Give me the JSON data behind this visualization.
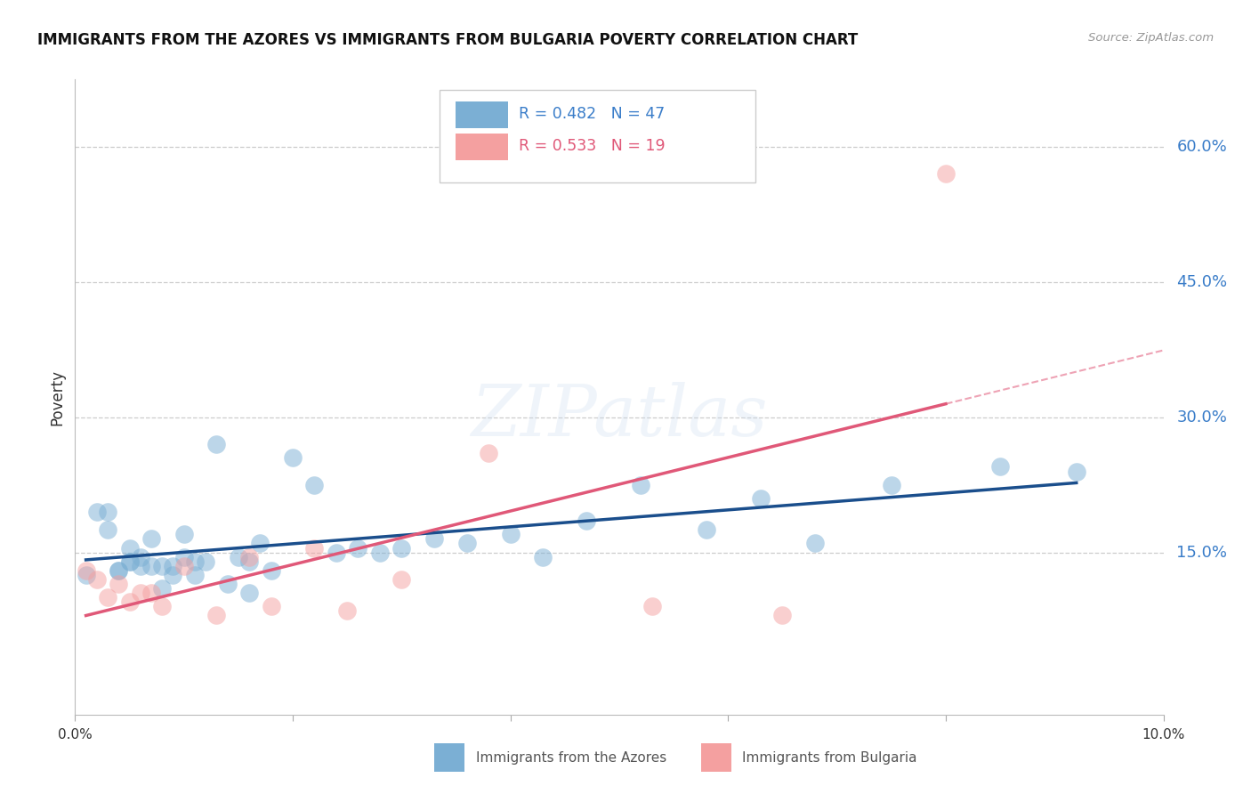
{
  "title": "IMMIGRANTS FROM THE AZORES VS IMMIGRANTS FROM BULGARIA POVERTY CORRELATION CHART",
  "source": "Source: ZipAtlas.com",
  "ylabel": "Poverty",
  "ytick_labels": [
    "60.0%",
    "45.0%",
    "30.0%",
    "15.0%"
  ],
  "ytick_values": [
    0.6,
    0.45,
    0.3,
    0.15
  ],
  "xlim": [
    0.0,
    0.1
  ],
  "ylim": [
    -0.03,
    0.675
  ],
  "legend_blue_r": "0.482",
  "legend_blue_n": "47",
  "legend_pink_r": "0.533",
  "legend_pink_n": "19",
  "blue_color": "#7BAFD4",
  "pink_color": "#F4A0A0",
  "line_blue_color": "#1A4E8C",
  "line_pink_color": "#E05878",
  "watermark_text": "ZIPatlas",
  "azores_x": [
    0.001,
    0.002,
    0.003,
    0.003,
    0.004,
    0.004,
    0.005,
    0.005,
    0.005,
    0.006,
    0.006,
    0.007,
    0.007,
    0.008,
    0.008,
    0.009,
    0.009,
    0.01,
    0.01,
    0.011,
    0.011,
    0.012,
    0.013,
    0.014,
    0.015,
    0.016,
    0.016,
    0.017,
    0.018,
    0.02,
    0.022,
    0.024,
    0.026,
    0.028,
    0.03,
    0.033,
    0.036,
    0.04,
    0.043,
    0.047,
    0.052,
    0.058,
    0.063,
    0.068,
    0.075,
    0.085,
    0.092
  ],
  "azores_y": [
    0.125,
    0.195,
    0.195,
    0.175,
    0.13,
    0.13,
    0.14,
    0.14,
    0.155,
    0.135,
    0.145,
    0.135,
    0.165,
    0.135,
    0.11,
    0.125,
    0.135,
    0.17,
    0.145,
    0.14,
    0.125,
    0.14,
    0.27,
    0.115,
    0.145,
    0.105,
    0.14,
    0.16,
    0.13,
    0.255,
    0.225,
    0.15,
    0.155,
    0.15,
    0.155,
    0.165,
    0.16,
    0.17,
    0.145,
    0.185,
    0.225,
    0.175,
    0.21,
    0.16,
    0.225,
    0.245,
    0.24
  ],
  "bulgaria_x": [
    0.001,
    0.002,
    0.003,
    0.004,
    0.005,
    0.006,
    0.007,
    0.008,
    0.01,
    0.013,
    0.016,
    0.018,
    0.022,
    0.025,
    0.03,
    0.038,
    0.053,
    0.065,
    0.08
  ],
  "bulgaria_y": [
    0.13,
    0.12,
    0.1,
    0.115,
    0.095,
    0.105,
    0.105,
    0.09,
    0.135,
    0.08,
    0.145,
    0.09,
    0.155,
    0.085,
    0.12,
    0.26,
    0.09,
    0.08,
    0.57
  ]
}
